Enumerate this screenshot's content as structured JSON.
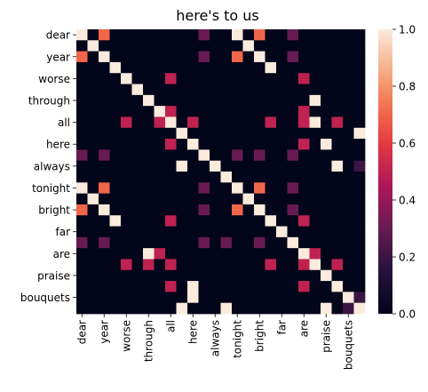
{
  "chart_data": {
    "type": "heatmap",
    "title": "here's to us",
    "rows": [
      "dear",
      "",
      "year",
      "",
      "worse",
      "",
      "through",
      "",
      "all",
      "",
      "here",
      "",
      "always",
      "",
      "tonight",
      "",
      "bright",
      "",
      "far",
      "",
      "are",
      "",
      "praise",
      "",
      "bouquets",
      ""
    ],
    "columns": [
      "dear",
      "",
      "year",
      "",
      "worse",
      "",
      "through",
      "",
      "all",
      "",
      "here",
      "",
      "always",
      "",
      "tonight",
      "",
      "bright",
      "",
      "far",
      "",
      "are",
      "",
      "praise",
      "",
      "bouquets",
      ""
    ],
    "values": [
      [
        1,
        0,
        0.7,
        0,
        0,
        0,
        0,
        0,
        0,
        0,
        0,
        0.3,
        0,
        0,
        1,
        0,
        0.7,
        0,
        0,
        0.3,
        0,
        0,
        0,
        0,
        0,
        0
      ],
      [
        0,
        1,
        0,
        0,
        0,
        0,
        0,
        0,
        0,
        0,
        0,
        0,
        0,
        0,
        0,
        1,
        0,
        0,
        0,
        0,
        0,
        0,
        0,
        0,
        0,
        0
      ],
      [
        0.7,
        0,
        1,
        0,
        0,
        0,
        0,
        0,
        0,
        0,
        0,
        0.3,
        0,
        0,
        0.7,
        0,
        1,
        0,
        0,
        0.3,
        0,
        0,
        0,
        0,
        0,
        0
      ],
      [
        0,
        0,
        0,
        1,
        0,
        0,
        0,
        0,
        0,
        0,
        0,
        0,
        0,
        0,
        0,
        0,
        0,
        1,
        0,
        0,
        0,
        0,
        0,
        0,
        0,
        0
      ],
      [
        0,
        0,
        0,
        0,
        1,
        0,
        0,
        0,
        0.5,
        0,
        0,
        0,
        0,
        0,
        0,
        0,
        0,
        0,
        0,
        0,
        0.5,
        0,
        0,
        0,
        0,
        0
      ],
      [
        0,
        0,
        0,
        0,
        0,
        1,
        0,
        0,
        0,
        0,
        0,
        0,
        0,
        0,
        0,
        0,
        0,
        0,
        0,
        0,
        0,
        0,
        0,
        0,
        0,
        0
      ],
      [
        0,
        0,
        0,
        0,
        0,
        0,
        1,
        0,
        0,
        0,
        0,
        0,
        0,
        0,
        0,
        0,
        0,
        0,
        0,
        0,
        0,
        1,
        0,
        0,
        0,
        0
      ],
      [
        0,
        0,
        0,
        0,
        0,
        0,
        0,
        1,
        0.5,
        0,
        0,
        0,
        0,
        0,
        0,
        0,
        0,
        0,
        0,
        0,
        0.5,
        0,
        0,
        0,
        0,
        0
      ],
      [
        0,
        0,
        0,
        0,
        0.5,
        0,
        0,
        0.5,
        1,
        0,
        0.5,
        0,
        0,
        0,
        0,
        0,
        0,
        0.5,
        0,
        0,
        0.5,
        1,
        0,
        0.5,
        0,
        0
      ],
      [
        0,
        0,
        0,
        0,
        0,
        0,
        0,
        0,
        0,
        1,
        0,
        0,
        0,
        0,
        0,
        0,
        0,
        0,
        0,
        0,
        0,
        0,
        0,
        0,
        0,
        1
      ],
      [
        0,
        0,
        0,
        0,
        0,
        0,
        0,
        0,
        0.5,
        0,
        1,
        0,
        0,
        0,
        0,
        0,
        0,
        0,
        0,
        0,
        0.5,
        0,
        1,
        0,
        0,
        0
      ],
      [
        0.3,
        0,
        0.3,
        0,
        0,
        0,
        0,
        0,
        0,
        0,
        0,
        1,
        0,
        0,
        0.3,
        0,
        0.3,
        0,
        0,
        0.3,
        0,
        0,
        0,
        0,
        0,
        0
      ],
      [
        0,
        0,
        0,
        0,
        0,
        0,
        0,
        0,
        0,
        1,
        0,
        0,
        1,
        0,
        0,
        0,
        0,
        0,
        0,
        0,
        0,
        0,
        0,
        1,
        0,
        0.2
      ],
      [
        0,
        0,
        0,
        0,
        0,
        0,
        0,
        0,
        0,
        0,
        0,
        0,
        0,
        1,
        0,
        0,
        0,
        0,
        0,
        0,
        0,
        0,
        0,
        0,
        0,
        0
      ],
      [
        1,
        0,
        0.7,
        0,
        0,
        0,
        0,
        0,
        0,
        0,
        0,
        0.3,
        0,
        0,
        1,
        0,
        0.7,
        0,
        0,
        0.3,
        0,
        0,
        0,
        0,
        0,
        0
      ],
      [
        0,
        1,
        0,
        0,
        0,
        0,
        0,
        0,
        0,
        0,
        0,
        0,
        0,
        0,
        0,
        1,
        0,
        0,
        0,
        0,
        0,
        0,
        0,
        0,
        0,
        0
      ],
      [
        0.7,
        0,
        1,
        0,
        0,
        0,
        0,
        0,
        0,
        0,
        0,
        0.3,
        0,
        0,
        0.7,
        0,
        1,
        0,
        0,
        0.3,
        0,
        0,
        0,
        0,
        0,
        0
      ],
      [
        0,
        0,
        0,
        1,
        0,
        0,
        0,
        0,
        0.5,
        0,
        0,
        0,
        0,
        0,
        0,
        0,
        0,
        1,
        0,
        0,
        0.5,
        0,
        0,
        0,
        0,
        0
      ],
      [
        0,
        0,
        0,
        0,
        0,
        0,
        0,
        0,
        0,
        0,
        0,
        0,
        0,
        0,
        0,
        0,
        0,
        0,
        1,
        0,
        0,
        0,
        0,
        0,
        0,
        0
      ],
      [
        0.3,
        0,
        0.3,
        0,
        0,
        0,
        0,
        0,
        0,
        0,
        0,
        0.3,
        0,
        0.3,
        0,
        0,
        0.3,
        0,
        0,
        1,
        0,
        0,
        0,
        0,
        0,
        0
      ],
      [
        0,
        0,
        0,
        0,
        0,
        0,
        1,
        0.5,
        0,
        0,
        0,
        0,
        0,
        0,
        0,
        0,
        0,
        0,
        0,
        0,
        1,
        0.5,
        0,
        0,
        0,
        0
      ],
      [
        0,
        0,
        0,
        0,
        0.5,
        0,
        0.5,
        0,
        0.5,
        0,
        0,
        0,
        0,
        0,
        0,
        0,
        0,
        0.5,
        0,
        0,
        0.5,
        1,
        0,
        0.5,
        0,
        0
      ],
      [
        0,
        0,
        0,
        0,
        0,
        0,
        0,
        0,
        0,
        0,
        0,
        0,
        0,
        0,
        0,
        0,
        0,
        0,
        0,
        0,
        0,
        0,
        1,
        0,
        0,
        0
      ],
      [
        0,
        0,
        0,
        0,
        0,
        0,
        0,
        0,
        0.5,
        0,
        1,
        0,
        0,
        0,
        0,
        0,
        0,
        0,
        0,
        0,
        0.5,
        0,
        0,
        1,
        0,
        0
      ],
      [
        0,
        0,
        0,
        0,
        0,
        0,
        0,
        0,
        0,
        0,
        1,
        0,
        0,
        0,
        0,
        0,
        0,
        0,
        0,
        0,
        0,
        0,
        0,
        0,
        1,
        0.2
      ],
      [
        0,
        0,
        0,
        0,
        0,
        0,
        0,
        0,
        0,
        1,
        0,
        0,
        0,
        1,
        0,
        0,
        0,
        0,
        0,
        0,
        0,
        0,
        1,
        0,
        0.2,
        1
      ]
    ],
    "colorbar": {
      "min": 0.0,
      "max": 1.0,
      "ticks": [
        "0.0",
        "0.2",
        "0.4",
        "0.6",
        "0.8",
        "1.0"
      ],
      "colormap": "rocket"
    },
    "grid": false,
    "legend": "right"
  }
}
